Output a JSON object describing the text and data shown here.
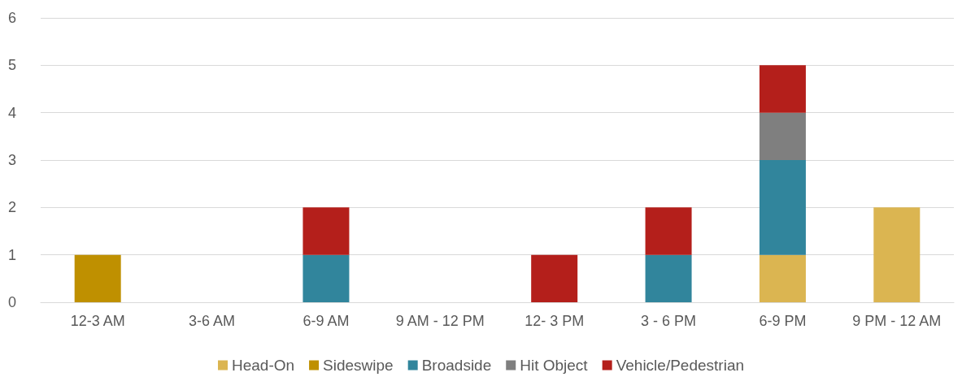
{
  "chart_data": {
    "type": "bar",
    "stacked": true,
    "categories": [
      "12-3 AM",
      "3-6 AM",
      "6-9 AM",
      "9 AM - 12 PM",
      "12- 3 PM",
      "3 - 6 PM",
      "6-9 PM",
      "9 PM - 12 AM"
    ],
    "series": [
      {
        "name": "Head-On",
        "color": "#dbb551",
        "values": [
          null,
          null,
          null,
          null,
          null,
          null,
          1,
          2
        ]
      },
      {
        "name": "Sideswipe",
        "color": "#bf9000",
        "values": [
          1,
          null,
          null,
          null,
          null,
          null,
          null,
          null
        ]
      },
      {
        "name": "Broadside",
        "color": "#31859c",
        "values": [
          null,
          null,
          1,
          null,
          null,
          1,
          2,
          null
        ]
      },
      {
        "name": "Hit Object",
        "color": "#7f7f7f",
        "values": [
          null,
          null,
          null,
          null,
          null,
          null,
          1,
          null
        ]
      },
      {
        "name": "Vehicle/Pedestrian",
        "color": "#b41f1b",
        "values": [
          null,
          null,
          1,
          null,
          1,
          1,
          1,
          null
        ]
      }
    ],
    "ylim": [
      0,
      6
    ],
    "yticks": [
      0,
      1,
      2,
      3,
      4,
      5,
      6
    ],
    "grid": "y",
    "legend": "bottom"
  }
}
